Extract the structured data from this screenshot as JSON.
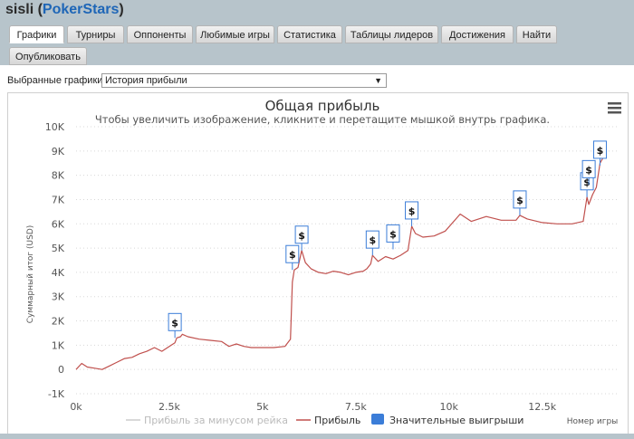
{
  "header": {
    "player": "sisli",
    "site": "PokerStars"
  },
  "tabs": [
    {
      "label": "Графики",
      "active": true
    },
    {
      "label": "Турниры"
    },
    {
      "label": "Оппоненты"
    },
    {
      "label": "Любимые игры"
    },
    {
      "label": "Статистика"
    },
    {
      "label": "Таблицы лидеров"
    },
    {
      "label": "Достижения"
    },
    {
      "label": "Найти"
    },
    {
      "label": "Опубликовать"
    }
  ],
  "selector": {
    "label": "Выбранные графики:",
    "value": "История прибыли"
  },
  "chart_data": {
    "type": "line",
    "title": "Общая прибыль",
    "subtitle": "Чтобы увеличить изображение, кликните и перетащите мышкой внутрь графика.",
    "ylabel": "Суммарный итог (USD)",
    "xlabel": "Номер игры",
    "xlim": [
      0,
      14500
    ],
    "ylim": [
      -1000,
      10000
    ],
    "x_ticks": [
      "0k",
      "2.5k",
      "5k",
      "7.5k",
      "10k",
      "12.5k"
    ],
    "y_ticks": [
      "-1K",
      "0",
      "1K",
      "2K",
      "3K",
      "4K",
      "5K",
      "6K",
      "7K",
      "8K",
      "9K",
      "10K"
    ],
    "series": [
      {
        "name": "Прибыль за минусом рейка",
        "visible": false,
        "color": "#cccccc",
        "values": []
      },
      {
        "name": "Прибыль",
        "color": "#c0504d",
        "x": [
          0,
          150,
          300,
          500,
          700,
          900,
          1100,
          1300,
          1500,
          1700,
          1900,
          2100,
          2300,
          2500,
          2650,
          2700,
          2800,
          2850,
          3000,
          3300,
          3600,
          3900,
          4100,
          4300,
          4500,
          4700,
          5000,
          5300,
          5600,
          5750,
          5800,
          5850,
          5950,
          6050,
          6150,
          6300,
          6500,
          6700,
          6900,
          7100,
          7300,
          7500,
          7700,
          7800,
          7900,
          7950,
          8100,
          8300,
          8500,
          8700,
          8900,
          9000,
          9100,
          9300,
          9600,
          9900,
          10300,
          10600,
          11000,
          11400,
          11800,
          11900,
          12100,
          12500,
          12900,
          13300,
          13600,
          13650,
          13700,
          13750,
          13850,
          13950,
          14050,
          14200
        ],
        "values": [
          0,
          250,
          100,
          50,
          0,
          150,
          300,
          450,
          500,
          650,
          750,
          900,
          750,
          950,
          1100,
          1300,
          1350,
          1450,
          1350,
          1250,
          1200,
          1150,
          950,
          1050,
          950,
          900,
          900,
          900,
          950,
          1250,
          3600,
          4100,
          4200,
          4900,
          4400,
          4150,
          4000,
          3950,
          4050,
          4000,
          3900,
          4000,
          4050,
          4150,
          4350,
          4700,
          4450,
          4650,
          4550,
          4700,
          4900,
          5900,
          5600,
          5450,
          5500,
          5700,
          6400,
          6100,
          6300,
          6150,
          6150,
          6350,
          6200,
          6050,
          6000,
          6000,
          6100,
          6600,
          7100,
          6800,
          7200,
          7500,
          8500,
          8900
        ]
      }
    ],
    "markers": {
      "name": "Значительные выигрыши",
      "color": "#3b7dd8",
      "symbol": "$",
      "points": [
        {
          "x": 2650,
          "y": 1300
        },
        {
          "x": 5800,
          "y": 4100
        },
        {
          "x": 6050,
          "y": 4900
        },
        {
          "x": 7950,
          "y": 4700
        },
        {
          "x": 8500,
          "y": 4950
        },
        {
          "x": 9000,
          "y": 5900
        },
        {
          "x": 11900,
          "y": 6350
        },
        {
          "x": 13700,
          "y": 7100
        },
        {
          "x": 13750,
          "y": 7600
        },
        {
          "x": 14050,
          "y": 8400
        }
      ]
    },
    "legend": "bottom",
    "grid": true
  }
}
